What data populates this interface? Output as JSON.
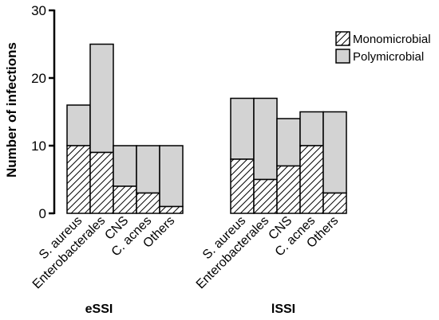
{
  "chart_data": {
    "type": "bar",
    "stacked": true,
    "ylabel": "Number of infections",
    "ylim": [
      0,
      30
    ],
    "yticks": [
      "0",
      "10",
      "20",
      "30"
    ],
    "legend_position": "top-right",
    "legend": [
      {
        "name": "Monomicrobial",
        "pattern": "hatched"
      },
      {
        "name": "Polymicrobial",
        "color": "#d3d3d3"
      }
    ],
    "groups": [
      {
        "label": "eSSI",
        "categories": [
          "S. aureus",
          "Enterobacterales",
          "CNS",
          "C. acnes",
          "Others"
        ],
        "series": [
          {
            "name": "Monomicrobial",
            "values": [
              10,
              9,
              4,
              3,
              1
            ]
          },
          {
            "name": "Polymicrobial",
            "values": [
              6,
              16,
              6,
              7,
              9
            ]
          }
        ]
      },
      {
        "label": "lSSI",
        "categories": [
          "S. aureus",
          "Enterobacterales",
          "CNS",
          "C. acnes",
          "Others"
        ],
        "series": [
          {
            "name": "Monomicrobial",
            "values": [
              8,
              5,
              7,
              10,
              3
            ]
          },
          {
            "name": "Polymicrobial",
            "values": [
              9,
              12,
              7,
              5,
              12
            ]
          }
        ]
      }
    ],
    "colors": {
      "poly_fill": "#d3d3d3",
      "stroke": "#000000",
      "mono_fill": "#ffffff"
    }
  }
}
